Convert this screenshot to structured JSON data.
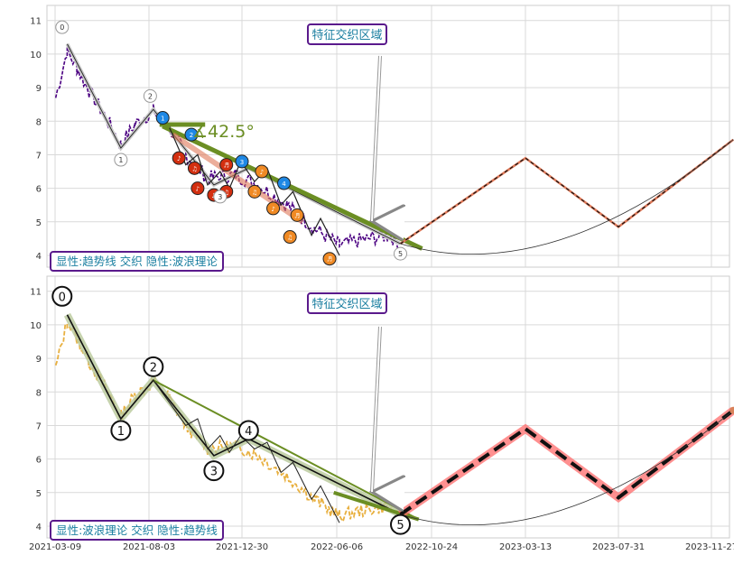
{
  "chart_data": [
    {
      "type": "line",
      "panel": "top",
      "ylim": [
        3.65,
        11.45
      ],
      "yticks": [
        4,
        5,
        6,
        7,
        8,
        9,
        10,
        11
      ],
      "grid": true,
      "annotation_box": "特征交织区域",
      "legend_box": "显性:趋势线 交织 隐性:波浪理论",
      "angle_label": "∡42.5°",
      "wave_labels": [
        "0",
        "1",
        "2",
        "3",
        "4",
        "5"
      ],
      "price_points": [
        {
          "x": "2021-03-10",
          "y": 8.7
        },
        {
          "x": "2021-03-28",
          "y": 10.1
        },
        {
          "x": "2021-04-12",
          "y": 9.6
        },
        {
          "x": "2021-05-01",
          "y": 8.9
        },
        {
          "x": "2021-05-25",
          "y": 8.2
        },
        {
          "x": "2021-06-20",
          "y": 7.3
        },
        {
          "x": "2021-07-12",
          "y": 7.9
        },
        {
          "x": "2021-08-10",
          "y": 8.3
        },
        {
          "x": "2021-09-05",
          "y": 7.8
        },
        {
          "x": "2021-10-01",
          "y": 7.0
        },
        {
          "x": "2021-11-05",
          "y": 6.3
        },
        {
          "x": "2021-12-20",
          "y": 6.4
        },
        {
          "x": "2022-01-25",
          "y": 6.1
        },
        {
          "x": "2022-03-15",
          "y": 5.5
        },
        {
          "x": "2022-04-30",
          "y": 4.8
        },
        {
          "x": "2022-06-10",
          "y": 4.3
        },
        {
          "x": "2022-07-20",
          "y": 4.5
        },
        {
          "x": "2022-08-25",
          "y": 4.6
        },
        {
          "x": "2022-09-05",
          "y": 4.3
        }
      ],
      "symbol_labels": [
        "1",
        "2",
        "3",
        "4"
      ]
    },
    {
      "type": "line",
      "panel": "bottom",
      "ylim": [
        3.65,
        11.45
      ],
      "yticks": [
        4,
        5,
        6,
        7,
        8,
        9,
        10,
        11
      ],
      "grid": true,
      "annotation_box": "特征交织区域",
      "legend_box": "显性:波浪理论 交织 隐性:趋势线",
      "wave_labels": [
        "0",
        "1",
        "2",
        "3",
        "4",
        "5"
      ],
      "x_ticks": [
        "2021-03-09",
        "2021-08-03",
        "2021-12-30",
        "2022-06-06",
        "2022-10-24",
        "2023-03-13",
        "2023-07-31",
        "2023-11-27"
      ]
    }
  ],
  "labels": {
    "top_box": "特征交织区域",
    "top_legend": "显性:趋势线 交织 隐性:波浪理论",
    "top_angle": "∡42.5°",
    "bottom_box": "特征交织区域",
    "bottom_legend": "显性:波浪理论 交织 隐性:趋势线"
  }
}
